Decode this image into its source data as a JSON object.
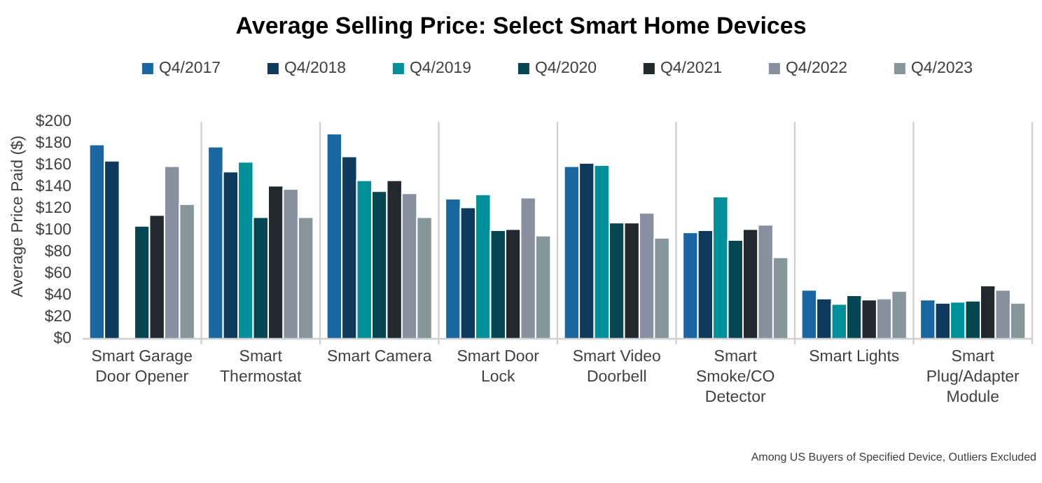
{
  "chart_data": {
    "type": "bar",
    "title": "Average Selling Price: Select Smart Home Devices",
    "ylabel": "Average Price Paid ($)",
    "categories": [
      "Smart Garage Door Opener",
      "Smart Thermostat",
      "Smart Camera",
      "Smart Door Lock",
      "Smart Video Doorbell",
      "Smart Smoke/CO Detector",
      "Smart Lights",
      "Smart Plug/Adapter Module"
    ],
    "series": [
      {
        "name": "Q4/2017",
        "color": "#1a66a0",
        "values": [
          179,
          177,
          189,
          129,
          159,
          98,
          45,
          36
        ]
      },
      {
        "name": "Q4/2018",
        "color": "#0e3a5e",
        "values": [
          164,
          154,
          168,
          121,
          162,
          100,
          37,
          33
        ]
      },
      {
        "name": "Q4/2019",
        "color": "#00909a",
        "values": [
          null,
          163,
          146,
          133,
          160,
          131,
          32,
          34
        ]
      },
      {
        "name": "Q4/2020",
        "color": "#064652",
        "values": [
          104,
          112,
          136,
          100,
          107,
          91,
          40,
          35
        ]
      },
      {
        "name": "Q4/2021",
        "color": "#22282e",
        "values": [
          114,
          141,
          146,
          101,
          107,
          101,
          36,
          49
        ]
      },
      {
        "name": "Q4/2022",
        "color": "#8890a0",
        "values": [
          159,
          138,
          134,
          130,
          116,
          105,
          37,
          45
        ]
      },
      {
        "name": "Q4/2023",
        "color": "#86969a",
        "values": [
          124,
          112,
          112,
          95,
          93,
          75,
          44,
          33
        ]
      }
    ],
    "ylim": [
      0,
      200
    ],
    "yticks": [
      {
        "value": 0,
        "label": "$0"
      },
      {
        "value": 20,
        "label": "$20"
      },
      {
        "value": 40,
        "label": "$40"
      },
      {
        "value": 60,
        "label": "$60"
      },
      {
        "value": 80,
        "label": "$80"
      },
      {
        "value": 100,
        "label": "$100"
      },
      {
        "value": 120,
        "label": "$120"
      },
      {
        "value": 140,
        "label": "$140"
      },
      {
        "value": 160,
        "label": "$160"
      },
      {
        "value": 180,
        "label": "$180"
      },
      {
        "value": 200,
        "label": "$200"
      }
    ],
    "grid": "x",
    "legend": "top",
    "annotations": [
      "Among US Buyers of Specified Device, Outliers Excluded"
    ]
  }
}
